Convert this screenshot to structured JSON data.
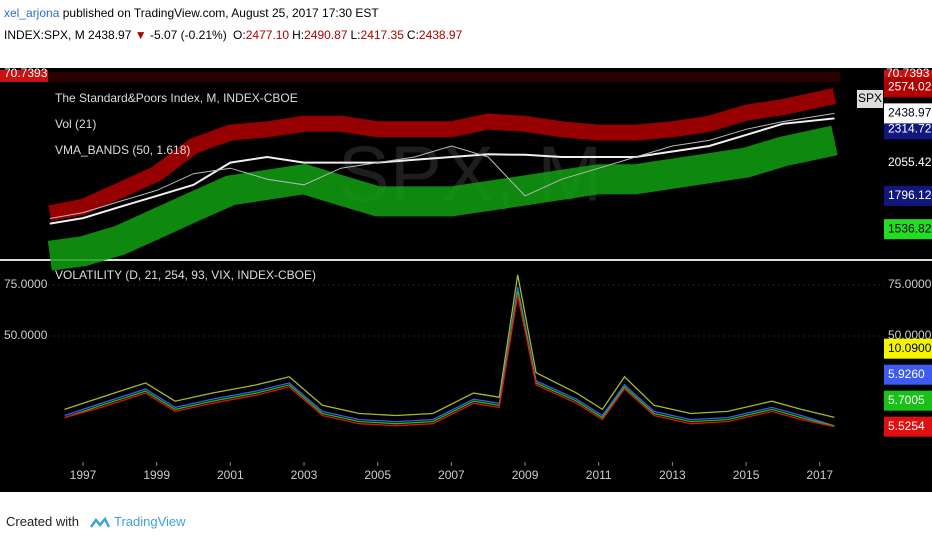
{
  "header": {
    "user": "xel_arjona",
    "published": "published on TradingView.com, August 25, 2017 17:30 EST"
  },
  "symbol_bar": {
    "symbol": "INDEX:SPX, M",
    "price": "2438.97",
    "change": "-5.07 (-0.21%)",
    "ohlc": [
      {
        "label": "O:",
        "value": "2477.10"
      },
      {
        "label": "H:",
        "value": "2490.87"
      },
      {
        "label": "L:",
        "value": "2417.35"
      },
      {
        "label": "C:",
        "value": "2438.97"
      }
    ]
  },
  "chart_data": [
    {
      "type": "line",
      "title": "The Standard&Poors Index, M, INDEX-CBOE",
      "legend_labels": [
        "Vol (21)",
        "VMA_BANDS (50, 1.618)"
      ],
      "watermark": "SPX, M",
      "symbol_tag": "SPX",
      "cropped_pane_label": "70.7393",
      "x": [
        1996.1,
        1997,
        1998,
        1999,
        2000,
        2001,
        2002,
        2003,
        2004,
        2005,
        2006,
        2007,
        2008,
        2009,
        2010,
        2011,
        2012,
        2013,
        2014,
        2015,
        2016,
        2017.4
      ],
      "xlim": [
        1996.05,
        2017.55
      ],
      "ylim": [
        1312,
        2660
      ],
      "yticks": [
        1536.82,
        1796.12,
        2055.42,
        2314.72
      ],
      "ytick_colors": [
        "#22dd22",
        "#101880",
        "#000000",
        "#101880"
      ],
      "series": [
        {
          "color": "#b00000",
          "stroke_width": 16,
          "last_value_badge": true,
          "values": [
            1660,
            1710,
            1839,
            1969,
            2185,
            2289,
            2315,
            2358,
            2358,
            2315,
            2315,
            2315,
            2375,
            2358,
            2315,
            2289,
            2289,
            2315,
            2358,
            2444,
            2488,
            2574.02
          ]
        },
        {
          "color": "#10a010",
          "stroke_width": 30,
          "last_value_badge": false,
          "values": [
            1330,
            1364,
            1450,
            1580,
            1710,
            1839,
            1882,
            1926,
            1839,
            1753,
            1753,
            1753,
            1796,
            1839,
            1882,
            1926,
            1926,
            1969,
            2012,
            2055,
            2142,
            2228
          ]
        },
        {
          "color": "#f0f0f0",
          "stroke_width": 2,
          "last_value_badge": false,
          "values": [
            1580,
            1623,
            1710,
            1796,
            1882,
            2055,
            2099,
            2055,
            2055,
            2055,
            2077,
            2099,
            2120,
            2116,
            2099,
            2099,
            2099,
            2142,
            2185,
            2271,
            2358,
            2400
          ]
        },
        {
          "color": "#b8b8b8",
          "stroke_width": 1,
          "last_value_badge": true,
          "values": [
            1620,
            1666,
            1753,
            1839,
            1969,
            2012,
            1926,
            1882,
            2012,
            2055,
            2099,
            2185,
            2099,
            1796,
            1926,
            2012,
            2099,
            2185,
            2228,
            2315,
            2375,
            2438.97
          ]
        }
      ]
    },
    {
      "type": "line",
      "title": "VOLATILITY (D, 21, 254, 93, VIX, INDEX-CBOE)",
      "x": [
        1996.5,
        1997.5,
        1998.7,
        1999.5,
        2000.5,
        2001.7,
        2002.6,
        2003.5,
        2004.5,
        2005.5,
        2006.5,
        2007.6,
        2008.3,
        2008.8,
        2009.3,
        2010.4,
        2011.1,
        2011.7,
        2012.5,
        2013.5,
        2014.5,
        2015.7,
        2016.5,
        2017.4
      ],
      "xlim": [
        1996.05,
        2017.55
      ],
      "ylim": [
        -11.8,
        86.3
      ],
      "yticks": [
        {
          "value": 50,
          "label": "50.0000"
        },
        {
          "value": 75,
          "label": "75.0000"
        }
      ],
      "xticks": [
        1997,
        1999,
        2001,
        2003,
        2005,
        2007,
        2009,
        2011,
        2013,
        2015,
        2017
      ],
      "series": [
        {
          "color": "#a5b82e",
          "values": [
            14,
            20,
            27,
            18,
            22,
            26,
            30,
            16,
            12,
            11,
            12,
            22,
            20,
            80,
            32,
            22,
            14,
            30,
            16,
            12,
            13,
            18,
            14,
            10.09
          ],
          "value_labels": [
            "10.0900"
          ]
        },
        {
          "color": "#3d5af1",
          "values": [
            11,
            17,
            24,
            15,
            19,
            23,
            27,
            13,
            9,
            8,
            9,
            19,
            17,
            74,
            28,
            19,
            11,
            26,
            13,
            9,
            10,
            15,
            11,
            5.926
          ],
          "value_labels": [
            "5.9260"
          ]
        },
        {
          "color": "#18c018",
          "values": [
            10,
            16,
            23,
            14,
            18,
            22,
            26,
            12,
            8,
            7,
            8,
            18,
            16,
            72,
            27,
            18,
            10,
            25,
            12,
            8,
            9,
            14,
            10,
            5.7005
          ],
          "value_labels": [
            "5.7005"
          ]
        },
        {
          "color": "#e01010",
          "values": [
            10,
            15,
            22,
            13,
            17,
            21,
            25,
            11,
            7,
            6,
            7,
            17,
            15,
            70,
            26,
            17,
            9,
            24,
            11,
            7,
            8,
            13,
            9,
            5.5254
          ],
          "value_labels": [
            "5.5254"
          ]
        }
      ]
    }
  ],
  "footer": {
    "created": "Created with",
    "brand": "TradingView"
  }
}
